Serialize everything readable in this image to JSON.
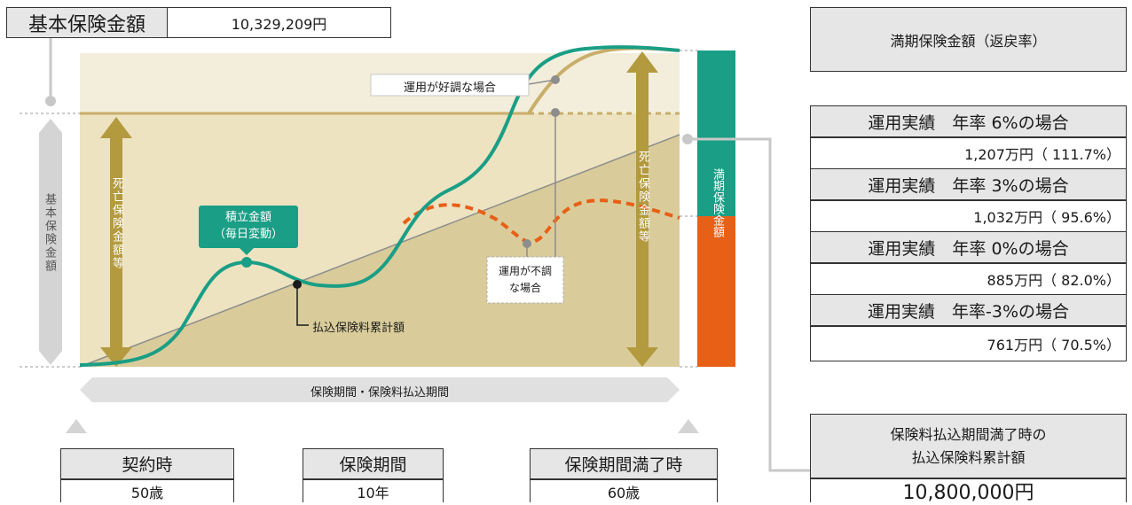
{
  "basic_sum": {
    "label": "基本保険金額",
    "value": "10,329,209円"
  },
  "maturity_header": "満期保険金額（返戻率）",
  "scenarios": [
    {
      "label": "運用実績　年率 6%の場合",
      "value": "1,207万円（ 111.7%）"
    },
    {
      "label": "運用実績　年率 3%の場合",
      "value": "1,032万円（  95.6%）"
    },
    {
      "label": "運用実績　年率 0%の場合",
      "value": "885万円（  82.0%）"
    },
    {
      "label": "運用実績　年率-3%の場合",
      "value": "761万円（  70.5%）"
    }
  ],
  "payment_total": {
    "label_line1": "保険料払込期間満了時の",
    "label_line2": "払込保険料累計額",
    "value": "10,800,000円"
  },
  "bottom": {
    "contract": {
      "label": "契約時",
      "value": "50歳"
    },
    "period": {
      "label": "保険期間",
      "value": "10年"
    },
    "end": {
      "label": "保険期間満了時",
      "value": "60歳"
    }
  },
  "diagram": {
    "vertical_left": "基本保険金額",
    "death_benefit_left": "死亡保険金額等",
    "death_benefit_right": "死亡保険金額等",
    "maturity_bar": "満期保険金額",
    "accumulated_line1": "積立金額",
    "accumulated_line2": "（毎日変動）",
    "good_case": "運用が好調な場合",
    "bad_case_line1": "運用が不調",
    "bad_case_line2": "な場合",
    "premium_total": "払込保険料累計額",
    "period_arrow": "保険期間・保険料払込期間"
  },
  "colors": {
    "teal": "#1a9e85",
    "orange": "#e85f16",
    "gold": "#b39a3f",
    "panel": "#f3eedb",
    "triangle": "#d9cc9a",
    "gray": "#d4d4d4"
  }
}
